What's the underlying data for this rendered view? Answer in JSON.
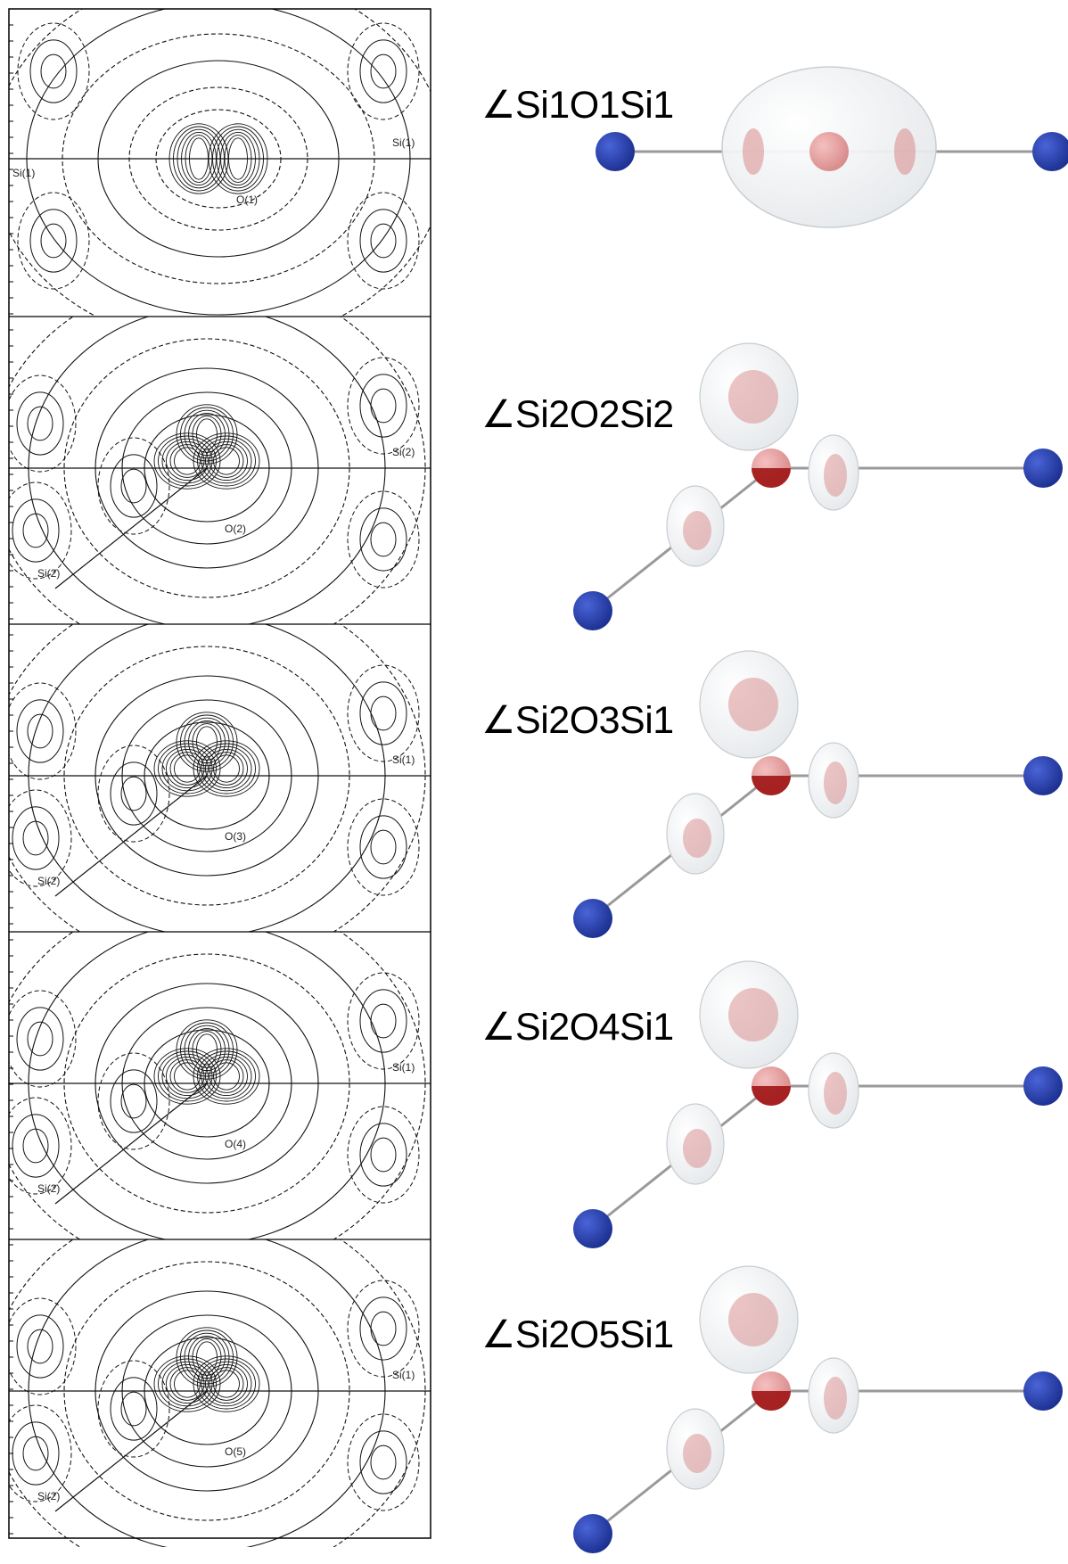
{
  "panels": [
    {
      "angle_label": "∠Si1O1Si1",
      "contour_labels": {
        "oxygen": "O(1)",
        "si_left": "Si(1)",
        "si_right": "Si(1)"
      },
      "model_type": "linear"
    },
    {
      "angle_label": "∠Si2O2Si2",
      "contour_labels": {
        "oxygen": "O(2)",
        "si_left": "Si(2)",
        "si_right": "Si(2)"
      },
      "model_type": "bent"
    },
    {
      "angle_label": "∠Si2O3Si1",
      "contour_labels": {
        "oxygen": "O(3)",
        "si_left": "Si(2)",
        "si_right": "Si(1)"
      },
      "model_type": "bent"
    },
    {
      "angle_label": "∠Si2O4Si1",
      "contour_labels": {
        "oxygen": "O(4)",
        "si_left": "Si(2)",
        "si_right": "Si(1)"
      },
      "model_type": "bent"
    },
    {
      "angle_label": "∠Si2O5Si1",
      "contour_labels": {
        "oxygen": "O(5)",
        "si_left": "Si(2)",
        "si_right": "Si(1)"
      },
      "model_type": "bent"
    }
  ],
  "colors": {
    "si_atom": "#1b2f8f",
    "o_atom": "#d88a8a",
    "o_atom_dark": "#a01515",
    "density_shell": "#e6e9ec",
    "bond": "#9a9a9a",
    "contour_line": "#111111"
  }
}
